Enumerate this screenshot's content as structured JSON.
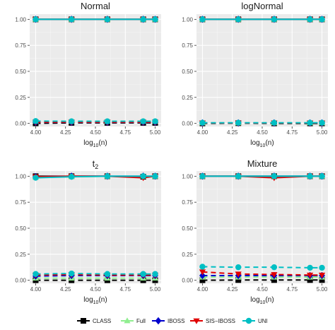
{
  "chart_data": {
    "type": "line",
    "xlabel": "log10(n)",
    "xlim": [
      3.95,
      5.05
    ],
    "ylim": [
      -0.03,
      1.05
    ],
    "x_ticks": [
      "4.00",
      "4.25",
      "4.50",
      "4.75",
      "5.00"
    ],
    "y_ticks": [
      "0.00",
      "0.25",
      "0.50",
      "0.75",
      "1.00"
    ],
    "grid": true,
    "legend_position": "bottom",
    "legend": [
      {
        "name": "CLASS",
        "color": "#000000",
        "shape": "square"
      },
      {
        "name": "Full",
        "color": "#90EE90",
        "shape": "triangle-up"
      },
      {
        "name": "IBOSS",
        "color": "#0000CD",
        "shape": "diamond"
      },
      {
        "name": "SIS−IBOSS",
        "color": "#E00000",
        "shape": "triangle-down"
      },
      {
        "name": "UNI",
        "color": "#00BFC4",
        "shape": "circle"
      }
    ],
    "x": [
      4.0,
      4.3,
      4.6,
      4.9,
      5.0
    ],
    "panels": [
      {
        "title": "Normal",
        "series": [
          {
            "name": "CLASS",
            "solid": [
              1.0,
              1.0,
              1.0,
              1.0,
              1.0
            ],
            "dashed": [
              0.0,
              0.005,
              0.005,
              0.005,
              0.005
            ]
          },
          {
            "name": "Full",
            "solid": [
              1.0,
              1.0,
              1.0,
              1.0,
              1.0
            ],
            "dashed": [
              0.02,
              0.02,
              0.02,
              0.02,
              0.02
            ]
          },
          {
            "name": "IBOSS",
            "solid": [
              1.0,
              1.0,
              1.0,
              1.0,
              1.0
            ],
            "dashed": [
              0.01,
              0.01,
              0.01,
              0.01,
              0.01
            ]
          },
          {
            "name": "SIS−IBOSS",
            "solid": [
              1.0,
              1.0,
              1.0,
              1.0,
              1.0
            ],
            "dashed": [
              0.012,
              0.012,
              0.012,
              0.012,
              0.012
            ]
          },
          {
            "name": "UNI",
            "solid": [
              1.0,
              1.0,
              1.0,
              1.0,
              1.0
            ],
            "dashed": [
              0.022,
              0.02,
              0.02,
              0.02,
              0.02
            ]
          }
        ]
      },
      {
        "title": "logNormal",
        "series": [
          {
            "name": "CLASS",
            "solid": [
              1.0,
              1.0,
              1.0,
              1.0,
              1.0
            ],
            "dashed": [
              0.0,
              0.002,
              0.0,
              0.0,
              0.0
            ]
          },
          {
            "name": "Full",
            "solid": [
              1.0,
              1.0,
              1.0,
              1.0,
              1.0
            ],
            "dashed": [
              0.005,
              0.005,
              0.005,
              0.005,
              0.005
            ]
          },
          {
            "name": "IBOSS",
            "solid": [
              1.0,
              1.0,
              1.0,
              1.0,
              1.0
            ],
            "dashed": [
              0.004,
              0.004,
              0.004,
              0.004,
              0.004
            ]
          },
          {
            "name": "SIS−IBOSS",
            "solid": [
              1.0,
              1.0,
              1.0,
              1.0,
              1.0
            ],
            "dashed": [
              0.004,
              0.004,
              0.004,
              0.004,
              0.004
            ]
          },
          {
            "name": "UNI",
            "solid": [
              1.0,
              1.0,
              1.0,
              1.0,
              1.0
            ],
            "dashed": [
              0.006,
              0.006,
              0.006,
              0.006,
              0.006
            ]
          }
        ]
      },
      {
        "title": "t2",
        "series": [
          {
            "name": "CLASS",
            "solid": [
              1.0,
              1.0,
              1.0,
              0.995,
              1.0
            ],
            "dashed": [
              0.0,
              0.0,
              0.0,
              0.0,
              0.0
            ]
          },
          {
            "name": "Full",
            "solid": [
              0.99,
              0.995,
              1.0,
              1.0,
              1.0
            ],
            "dashed": [
              0.02,
              0.02,
              0.02,
              0.02,
              0.02
            ]
          },
          {
            "name": "IBOSS",
            "solid": [
              0.995,
              1.0,
              1.0,
              1.0,
              1.0
            ],
            "dashed": [
              0.04,
              0.045,
              0.045,
              0.045,
              0.045
            ]
          },
          {
            "name": "SIS−IBOSS",
            "solid": [
              0.995,
              1.0,
              1.0,
              0.985,
              1.0
            ],
            "dashed": [
              0.05,
              0.055,
              0.05,
              0.05,
              0.05
            ]
          },
          {
            "name": "UNI",
            "solid": [
              0.985,
              0.995,
              1.0,
              1.0,
              1.0
            ],
            "dashed": [
              0.06,
              0.065,
              0.06,
              0.06,
              0.06
            ]
          }
        ]
      },
      {
        "title": "Mixture",
        "series": [
          {
            "name": "CLASS",
            "solid": [
              1.0,
              1.0,
              1.0,
              1.0,
              1.0
            ],
            "dashed": [
              0.0,
              0.002,
              0.002,
              0.002,
              0.002
            ]
          },
          {
            "name": "Full",
            "solid": [
              1.0,
              1.0,
              1.0,
              1.0,
              1.0
            ],
            "dashed": [
              0.03,
              0.03,
              0.03,
              0.03,
              0.03
            ]
          },
          {
            "name": "IBOSS",
            "solid": [
              1.0,
              1.0,
              1.0,
              1.0,
              1.0
            ],
            "dashed": [
              0.045,
              0.045,
              0.045,
              0.045,
              0.045
            ]
          },
          {
            "name": "SIS−IBOSS",
            "solid": [
              1.0,
              1.0,
              0.985,
              1.0,
              1.0
            ],
            "dashed": [
              0.08,
              0.06,
              0.055,
              0.05,
              0.05
            ]
          },
          {
            "name": "UNI",
            "solid": [
              1.0,
              1.0,
              1.0,
              1.0,
              1.0
            ],
            "dashed": [
              0.13,
              0.125,
              0.125,
              0.12,
              0.12
            ]
          }
        ]
      }
    ]
  }
}
